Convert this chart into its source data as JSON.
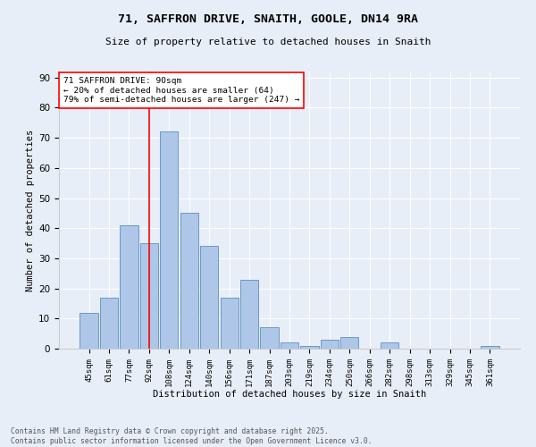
{
  "title1": "71, SAFFRON DRIVE, SNAITH, GOOLE, DN14 9RA",
  "title2": "Size of property relative to detached houses in Snaith",
  "xlabel": "Distribution of detached houses by size in Snaith",
  "ylabel": "Number of detached properties",
  "bar_labels": [
    "45sqm",
    "61sqm",
    "77sqm",
    "92sqm",
    "108sqm",
    "124sqm",
    "140sqm",
    "156sqm",
    "171sqm",
    "187sqm",
    "203sqm",
    "219sqm",
    "234sqm",
    "250sqm",
    "266sqm",
    "282sqm",
    "298sqm",
    "313sqm",
    "329sqm",
    "345sqm",
    "361sqm"
  ],
  "bar_values": [
    12,
    17,
    41,
    35,
    72,
    45,
    34,
    17,
    23,
    7,
    2,
    1,
    3,
    4,
    0,
    2,
    0,
    0,
    0,
    0,
    1
  ],
  "bar_color": "#aec6e8",
  "bar_edge_color": "#5a8fc2",
  "vline_color": "red",
  "annotation_text": "71 SAFFRON DRIVE: 90sqm\n← 20% of detached houses are smaller (64)\n79% of semi-detached houses are larger (247) →",
  "annotation_box_color": "white",
  "annotation_box_edge": "red",
  "ylim": [
    0,
    92
  ],
  "yticks": [
    0,
    10,
    20,
    30,
    40,
    50,
    60,
    70,
    80,
    90
  ],
  "footnote": "Contains HM Land Registry data © Crown copyright and database right 2025.\nContains public sector information licensed under the Open Government Licence v3.0.",
  "bg_color": "#e8eef8"
}
